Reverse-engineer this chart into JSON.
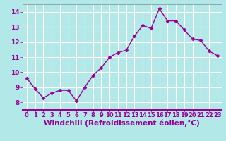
{
  "x": [
    0,
    1,
    2,
    3,
    4,
    5,
    6,
    7,
    8,
    9,
    10,
    11,
    12,
    13,
    14,
    15,
    16,
    17,
    18,
    19,
    20,
    21,
    22,
    23
  ],
  "y": [
    9.6,
    8.9,
    8.3,
    8.6,
    8.8,
    8.8,
    8.1,
    9.0,
    9.8,
    10.3,
    11.0,
    11.3,
    11.45,
    12.4,
    13.1,
    12.9,
    14.2,
    13.4,
    13.4,
    12.8,
    12.2,
    12.1,
    11.4,
    11.1
  ],
  "line_color": "#990099",
  "marker": "D",
  "marker_size": 2.5,
  "bg_color": "#b3e8e8",
  "grid_color": "#ffffff",
  "xlabel": "Windchill (Refroidissement éolien,°C)",
  "xlabel_color": "#990099",
  "xlabel_fontsize": 7.5,
  "tick_color": "#990099",
  "tick_fontsize": 6.0,
  "ylim": [
    7.5,
    14.5
  ],
  "xlim": [
    -0.5,
    23.5
  ],
  "yticks": [
    8,
    9,
    10,
    11,
    12,
    13,
    14
  ],
  "xticks": [
    0,
    1,
    2,
    3,
    4,
    5,
    6,
    7,
    8,
    9,
    10,
    11,
    12,
    13,
    14,
    15,
    16,
    17,
    18,
    19,
    20,
    21,
    22,
    23
  ],
  "linewidth": 1.0,
  "spine_color": "#888888"
}
